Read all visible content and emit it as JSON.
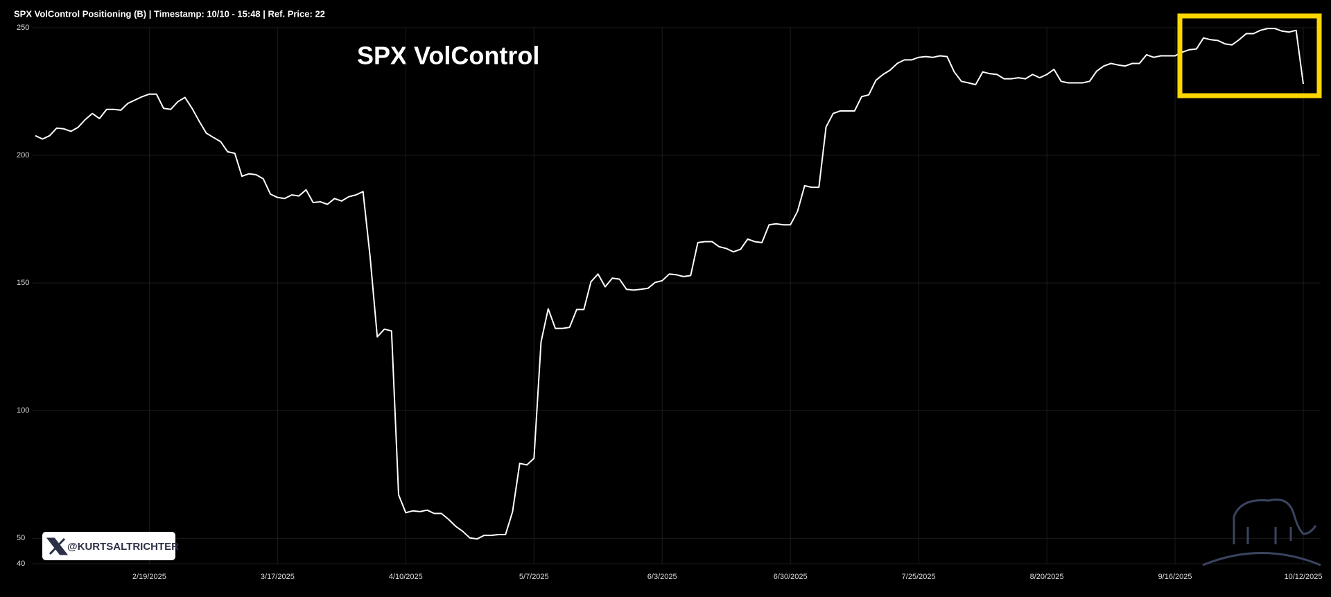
{
  "chart_data": {
    "type": "line",
    "title": "SPX VolControl Positioning (B) | Timestamp: 10/10 - 15:48  | Ref. Price: 22",
    "annotation": "SPX VolControl",
    "watermark": "@KURTSALTRICHTER",
    "categories": [
      null,
      null,
      null,
      null,
      null,
      null,
      null,
      null,
      null,
      null,
      null,
      null,
      null,
      null,
      null,
      null,
      "2/19/2025",
      null,
      null,
      null,
      null,
      null,
      null,
      null,
      null,
      null,
      null,
      null,
      null,
      null,
      null,
      null,
      null,
      null,
      "3/17/2025",
      null,
      null,
      null,
      null,
      null,
      null,
      null,
      null,
      null,
      null,
      null,
      null,
      null,
      null,
      null,
      null,
      null,
      "4/10/2025",
      null,
      null,
      null,
      null,
      null,
      null,
      null,
      null,
      null,
      null,
      null,
      null,
      null,
      null,
      null,
      null,
      null,
      "5/7/2025",
      null,
      null,
      null,
      null,
      null,
      null,
      null,
      null,
      null,
      null,
      null,
      null,
      null,
      null,
      null,
      null,
      null,
      "6/3/2025",
      null,
      null,
      null,
      null,
      null,
      null,
      null,
      null,
      null,
      null,
      null,
      null,
      null,
      null,
      null,
      null,
      null,
      "6/30/2025",
      null,
      null,
      null,
      null,
      null,
      null,
      null,
      null,
      null,
      null,
      null,
      null,
      null,
      null,
      null,
      null,
      null,
      "7/25/2025",
      null,
      null,
      null,
      null,
      null,
      null,
      null,
      null,
      null,
      null,
      null,
      null,
      null,
      null,
      null,
      null,
      null,
      "8/20/2025",
      null,
      null,
      null,
      null,
      null,
      null,
      null,
      null,
      null,
      null,
      null,
      null,
      null,
      null,
      null,
      null,
      null,
      "9/16/2025",
      null,
      null,
      null,
      null,
      null,
      null,
      null,
      null,
      null,
      null,
      null,
      null,
      null,
      null,
      null,
      null,
      null,
      "10/12/2025"
    ],
    "series": [
      {
        "name": "SPX VolControl Positioning (B)",
        "color": "#ffffff",
        "values": [
          207.7,
          206.4,
          207.7,
          210.7,
          210.4,
          209.4,
          211,
          214,
          216.4,
          214.4,
          218,
          218,
          217.7,
          220.4,
          221.7,
          223,
          224,
          224,
          218.4,
          218,
          221,
          222.7,
          218.4,
          213.4,
          208.7,
          207,
          205.4,
          201.4,
          200.8,
          191.8,
          192.8,
          192.4,
          190.8,
          184.8,
          183.5,
          183.1,
          184.5,
          184.1,
          186.5,
          181.5,
          181.8,
          180.8,
          183.1,
          182.1,
          183.8,
          184.5,
          185.8,
          160.2,
          128.9,
          131.9,
          131.2,
          67,
          60,
          60.7,
          60.4,
          61,
          59.7,
          59.7,
          57.4,
          54.7,
          52.7,
          50.1,
          49.7,
          51.1,
          51.1,
          51.4,
          51.4,
          60.4,
          79.3,
          78.7,
          81.3,
          126.9,
          139.9,
          132.2,
          132.2,
          132.6,
          139.6,
          139.6,
          150.5,
          153.5,
          148.5,
          151.9,
          151.5,
          147.5,
          147.2,
          147.5,
          147.9,
          150.2,
          150.9,
          153.5,
          153.2,
          152.5,
          152.9,
          165.8,
          166.2,
          166.2,
          164.2,
          163.5,
          162.2,
          163.2,
          167.2,
          166.2,
          165.8,
          172.8,
          173.2,
          172.8,
          172.8,
          178.1,
          188.1,
          187.5,
          187.5,
          211.1,
          216.4,
          217.4,
          217.4,
          217.4,
          223,
          223.7,
          229.4,
          231.7,
          233.4,
          236,
          237.4,
          237.4,
          238.4,
          238.7,
          238.4,
          239,
          238.7,
          232.7,
          229,
          228.4,
          227.7,
          232.7,
          232,
          231.7,
          230,
          230,
          230.4,
          230,
          231.7,
          230.4,
          231.7,
          233.7,
          229,
          228.4,
          228.4,
          228.4,
          229,
          233,
          235,
          236,
          235.4,
          235,
          236,
          236,
          239.4,
          238.4,
          239,
          239,
          239,
          240.4,
          241.4,
          241.7,
          246,
          245.3,
          245,
          243.7,
          243.3,
          245.3,
          247.7,
          247.7,
          249,
          249.7,
          249.7,
          248.7,
          248.3,
          249,
          228
        ]
      }
    ],
    "ylim": [
      40,
      250
    ],
    "yticks": [
      40,
      50,
      100,
      150,
      200,
      250
    ],
    "grid": true,
    "highlight_color": "#ffd700"
  }
}
